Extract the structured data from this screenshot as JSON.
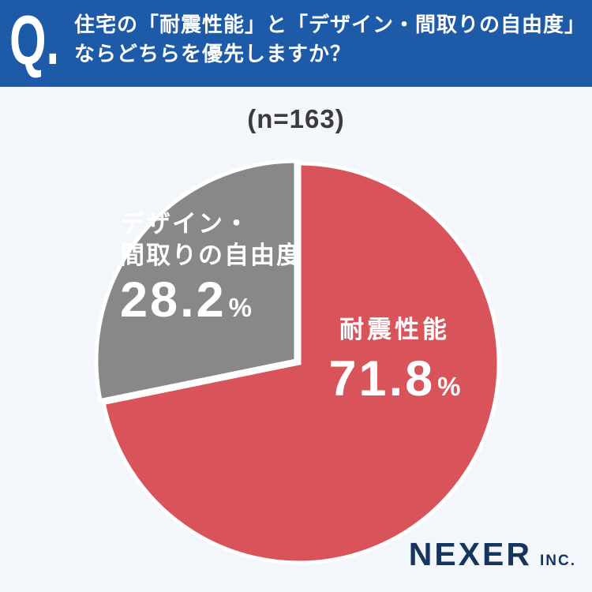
{
  "header": {
    "q_label": "Q.",
    "question_line1": "住宅の「耐震性能」と「デザイン・間取りの自由度」",
    "question_line2": "ならどちらを優先しますか？"
  },
  "sample_size_label": "(n=163)",
  "chart_data": {
    "type": "pie",
    "title": "住宅の「耐震性能」と「デザイン・間取りの自由度」ならどちらを優先しますか？",
    "sample_size": 163,
    "start_angle_deg": 0,
    "direction": "clockwise",
    "legend_position": "inside",
    "slices": [
      {
        "key": "earthquake-resistance",
        "label": "耐震性能",
        "label_lines": [
          "耐震性能"
        ],
        "value": 71.8,
        "unit": "%",
        "color": "#d9545a"
      },
      {
        "key": "design-layout-freedom",
        "label": "デザイン・間取りの自由度",
        "label_lines": [
          "デザイン・",
          "間取りの自由度"
        ],
        "value": 28.2,
        "unit": "%",
        "color": "#888888"
      }
    ]
  },
  "footer": {
    "brand": "NEXER",
    "brand_suffix": "INC."
  },
  "theme": {
    "header_bg": "#1d5ba8",
    "body_bg": "#f3f6fa",
    "header_text": "#ffffff",
    "sample_size_color": "#3b3b3b",
    "brand_color": "#15345e",
    "slice_divider_color": "#ffffff",
    "slice_text_color": "#ffffff"
  }
}
